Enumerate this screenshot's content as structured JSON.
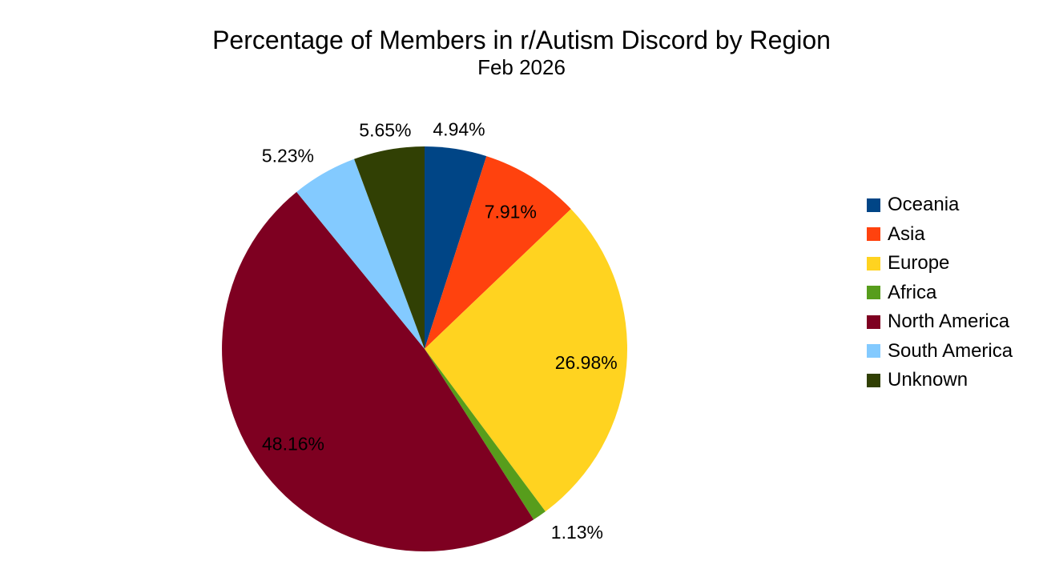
{
  "chart_data": {
    "type": "pie",
    "title": "Percentage of Members in r/Autism Discord by Region",
    "subtitle": "Feb 2026",
    "legend_position": "right",
    "slices": [
      {
        "label": "Oceania",
        "value": 4.94,
        "display": "4.94%",
        "color": "#004586",
        "label_placement": "outside"
      },
      {
        "label": "Asia",
        "value": 7.91,
        "display": "7.91%",
        "color": "#ff420e",
        "label_placement": "inside"
      },
      {
        "label": "Europe",
        "value": 26.98,
        "display": "26.98%",
        "color": "#ffd320",
        "label_placement": "inside"
      },
      {
        "label": "Africa",
        "value": 1.13,
        "display": "1.13%",
        "color": "#579d1c",
        "label_placement": "outside"
      },
      {
        "label": "North America",
        "value": 48.16,
        "display": "48.16%",
        "color": "#7e0021",
        "label_placement": "inside"
      },
      {
        "label": "South America",
        "value": 5.23,
        "display": "5.23%",
        "color": "#83caff",
        "label_placement": "outside"
      },
      {
        "label": "Unknown",
        "value": 5.65,
        "display": "5.65%",
        "color": "#314004",
        "label_placement": "outside"
      }
    ]
  }
}
